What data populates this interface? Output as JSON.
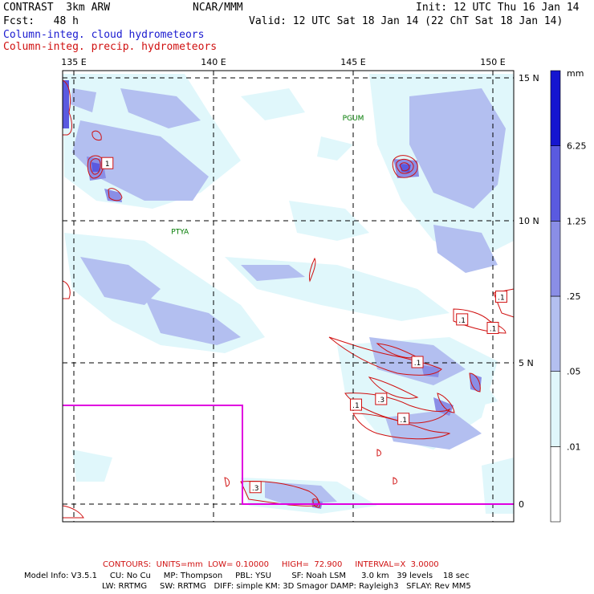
{
  "header": {
    "model": "CONTRAST  3km ARW",
    "org": "NCAR/MMM",
    "init": "Init: 12 UTC Thu 16 Jan 14",
    "fcst": "Fcst:   48 h",
    "valid": "Valid: 12 UTC Sat 18 Jan 14 (22 ChT Sat 18 Jan 14)",
    "field1": "Column-integ. cloud hydrometeors",
    "field2": "Column-integ. precip. hydrometeors"
  },
  "axes": {
    "lon_labels": [
      "135 E",
      "140 E",
      "145 E",
      "150 E"
    ],
    "lat_labels": [
      "15 N",
      "10 N",
      "5 N",
      "0"
    ]
  },
  "places": [
    {
      "name": "PGUM",
      "lon": 145.0,
      "lat": 13.5
    },
    {
      "name": "PTYA",
      "lon": 138.8,
      "lat": 9.5
    }
  ],
  "contour_labels": [
    {
      "text": "1",
      "lon": 136.2,
      "lat": 12.0
    },
    {
      "text": ".1",
      "lon": 150.3,
      "lat": 7.3
    },
    {
      "text": ".1",
      "lon": 148.9,
      "lat": 6.5
    },
    {
      "text": ".1",
      "lon": 150.0,
      "lat": 6.2
    },
    {
      "text": ".1",
      "lon": 147.3,
      "lat": 5.0
    },
    {
      "text": ".1",
      "lon": 145.1,
      "lat": 3.5
    },
    {
      "text": ".3",
      "lon": 146.0,
      "lat": 3.7
    },
    {
      "text": ".1",
      "lon": 146.8,
      "lat": 3.0
    },
    {
      "text": ".3",
      "lon": 141.5,
      "lat": 0.6
    }
  ],
  "colorbar": {
    "unit": "mm",
    "levels": [
      ".01",
      ".05",
      ".25",
      "1.25",
      "6.25"
    ],
    "colors": [
      "#ffffff",
      "#e0f7fb",
      "#b3bff0",
      "#8a8ee6",
      "#5a5ae0",
      "#1515d0"
    ]
  },
  "colors": {
    "cloud_light": "#e0f7fb",
    "cloud_mid": "#b3bff0",
    "cloud_dark": "#8a8ee6",
    "precip": "#d01010",
    "domain_box": "#e000e0",
    "station": "#007a00"
  },
  "footer": {
    "contours": "CONTOURS:  UNITS=mm  LOW= 0.10000     HIGH=  72.900     INTERVAL=X  3.0000",
    "line1": "Model Info: V3.5.1     CU: No Cu     MP: Thompson     PBL: YSU        SF: Noah LSM      3.0 km   39 levels    18 sec",
    "line2": "LW: RRTMG     SW: RRTMG   DIFF: simple KM: 3D Smagor DAMP: Rayleigh3   SFLAY: Rev MM5"
  }
}
